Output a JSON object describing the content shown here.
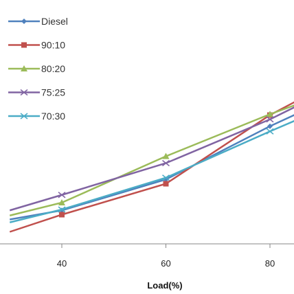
{
  "chart_data": {
    "type": "line",
    "x": [
      30,
      40,
      60,
      80,
      85
    ],
    "xticks": [
      40,
      60,
      80
    ],
    "xlabel": "Load(%)",
    "ylabel": "",
    "title": "",
    "grid": false,
    "legend_position": "top-left",
    "series": [
      {
        "name": "Diesel",
        "color": "#4f81bd",
        "marker": "diamond",
        "values": [
          14.2,
          19.5,
          37.5,
          68.5,
          75.5
        ]
      },
      {
        "name": "90:10",
        "color": "#c0504d",
        "marker": "square",
        "values": [
          7.0,
          17.0,
          35.0,
          75.0,
          83.0
        ]
      },
      {
        "name": "80:20",
        "color": "#9bbb59",
        "marker": "triangle",
        "values": [
          16.5,
          24.0,
          51.0,
          75.5,
          81.0
        ]
      },
      {
        "name": "75:25",
        "color": "#8064a2",
        "marker": "x",
        "values": [
          19.5,
          28.5,
          47.0,
          72.5,
          80.0
        ]
      },
      {
        "name": "70:30",
        "color": "#4bacc6",
        "marker": "x",
        "values": [
          12.5,
          20.0,
          38.5,
          65.5,
          72.0
        ]
      }
    ]
  }
}
